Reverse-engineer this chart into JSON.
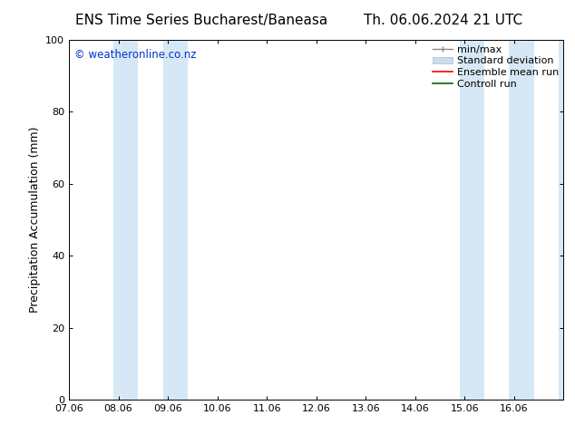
{
  "title_left": "ENS Time Series Bucharest/Baneasa",
  "title_right": "Th. 06.06.2024 21 UTC",
  "ylabel": "Precipitation Accumulation (mm)",
  "watermark": "© weatheronline.co.nz",
  "watermark_color": "#0033cc",
  "ylim": [
    0,
    100
  ],
  "yticks": [
    0,
    20,
    40,
    60,
    80,
    100
  ],
  "x_min": 7.0,
  "x_max": 17.0,
  "xtick_positions": [
    7,
    8,
    9,
    10,
    11,
    12,
    13,
    14,
    15,
    16
  ],
  "xtick_labels": [
    "07.06",
    "08.06",
    "09.06",
    "10.06",
    "11.06",
    "12.06",
    "13.06",
    "14.06",
    "15.06",
    "16.06"
  ],
  "background_color": "#ffffff",
  "plot_bg_color": "#ffffff",
  "shaded_bands": [
    {
      "x_start": 7.9,
      "x_end": 8.4,
      "color": "#d6e8f5"
    },
    {
      "x_start": 8.9,
      "x_end": 9.4,
      "color": "#d6e8f5"
    },
    {
      "x_start": 14.9,
      "x_end": 15.4,
      "color": "#d6e8f5"
    },
    {
      "x_start": 15.9,
      "x_end": 16.4,
      "color": "#d6e8f5"
    },
    {
      "x_start": 16.9,
      "x_end": 17.0,
      "color": "#d6e8f5"
    }
  ],
  "legend_labels": [
    "min/max",
    "Standard deviation",
    "Ensemble mean run",
    "Controll run"
  ],
  "legend_colors_line": [
    "#aaaaaa",
    "#bbccdd",
    "#ff0000",
    "#006600"
  ],
  "title_fontsize": 11,
  "axis_label_fontsize": 9,
  "tick_fontsize": 8,
  "legend_fontsize": 8
}
